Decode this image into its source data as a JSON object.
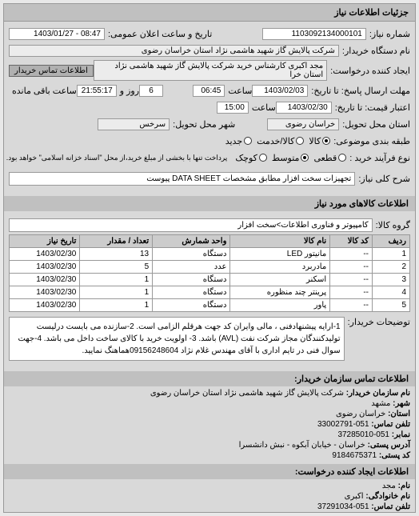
{
  "header": {
    "title": "جزئیات اطلاعات نیاز"
  },
  "fields": {
    "requestNumber": {
      "label": "شماره نیاز:",
      "value": "1103092134000101"
    },
    "announceDateTime": {
      "label": "تاریخ و ساعت اعلان عمومی:",
      "value": "08:47 - 1403/01/27"
    },
    "buyerCompany": {
      "label": "نام دستگاه خریدار:",
      "value": "شرکت پالایش گاز شهید هاشمی نژاد   استان خراسان رضوی"
    },
    "requesterUnit": {
      "label": "ایجاد کننده درخواست:",
      "value": "مجد اکبری کارشناس خرید شرکت پالایش گاز شهید هاشمی نژاد   استان خرا"
    },
    "buyerContactBtn": "اطلاعات تماس خریدار",
    "responseDeadline": {
      "label": "مهلت ارسال پاسخ: تا تاریخ:",
      "date": "1403/02/03",
      "timeLabel": "ساعت",
      "time": "06:45"
    },
    "remaining": {
      "value": "6",
      "label1": "روز و",
      "time": "21:55:17",
      "label2": "ساعت باقی مانده"
    },
    "priceValidity": {
      "label": "اعتبار قیمت: تا تاریخ:",
      "date": "1403/02/30",
      "timeLabel": "ساعت",
      "time": "15:00"
    },
    "deliveryProvince": {
      "label": "استان محل تحویل:",
      "value": "خراسان رضوی"
    },
    "deliveryCity": {
      "label": "شهر محل تحویل:",
      "value": "سرخس"
    },
    "packaging": {
      "label": "طبقه بندی موضوعی:",
      "opt1": "کالا",
      "opt2": "کالا/خدمت",
      "opt3": "جدید"
    },
    "purchaseType": {
      "label": "نوع فرآیند خرید :",
      "opt1": "قطعی",
      "opt2": "متوسط",
      "opt3": "کوچک",
      "note": "پرداخت تنها با بخشی از مبلغ خرید،از محل \"اسناد خزانه اسلامی\" خواهد بود."
    },
    "needDesc": {
      "label": "شرح کلی نیاز:",
      "value": "تجهیزات سخت افزار مطابق مشخصات DATA SHEET پیوست"
    },
    "goodsInfoHeader": "اطلاعات کالاهای مورد نیاز",
    "goodsGroup": {
      "label": "گروه کالا:",
      "value": "کامپیوتر و فناوری اطلاعات>سخت افزار"
    }
  },
  "table": {
    "headers": [
      "ردیف",
      "کد کالا",
      "نام کالا",
      "واحد شمارش",
      "تعداد / مقدار",
      "تاریخ نیاز"
    ],
    "rows": [
      [
        "1",
        "--",
        "مانیتور LED",
        "دستگاه",
        "13",
        "1403/02/30"
      ],
      [
        "2",
        "--",
        "مادربرد",
        "عدد",
        "5",
        "1403/02/30"
      ],
      [
        "3",
        "--",
        "اسکنر",
        "دستگاه",
        "1",
        "1403/02/30"
      ],
      [
        "4",
        "--",
        "پرینتر چند منظوره",
        "دستگاه",
        "1",
        "1403/02/30"
      ],
      [
        "5",
        "--",
        "پاور",
        "دستگاه",
        "1",
        "1403/02/30"
      ]
    ]
  },
  "buyerDesc": {
    "label": "توضیحات خریدار:",
    "text": "1-ارایه پیشنهادفنی ، مالی وایران کد جهت هرقلم الزامی است. 2-سازنده می بایست درلیست تولیدکنندگان مجاز شرکت نفت (AVL) باشد. 3- اولویت خرید با کالای ساخت داخل می باشد. 4-جهت سوال فنی در تایم اداری با آقای مهندس غلام نژاد 09156248604هماهنگ نمایید."
  },
  "buyerOrgHeader": "اطلاعات تماس سازمان خریدار:",
  "orgInfo": {
    "orgName": {
      "label": "نام سازمان خریدار:",
      "value": "شرکت پالایش گاز شهید هاشمی نژاد استان خراسان رضوی"
    },
    "city": {
      "label": "شهر:",
      "value": "مشهد"
    },
    "province": {
      "label": "استان:",
      "value": "خراسان رضوی"
    },
    "phone": {
      "label": "تلفن تماس:",
      "value": "051-33002791"
    },
    "fax": {
      "label": "نمابر:",
      "value": "051-37285010"
    },
    "address": {
      "label": "آدرس پستی:",
      "value": "خراسان - خیابان آبکوه - نبش دانشسرا"
    },
    "postalCode": {
      "label": "کد پستی:",
      "value": "9184675371"
    }
  },
  "requesterHeader": "اطلاعات ایجاد کننده درخواست:",
  "requester": {
    "name": {
      "label": "نام:",
      "value": "مجد"
    },
    "family": {
      "label": "نام خانوادگی:",
      "value": "اکبری"
    },
    "phone": {
      "label": "تلفن تماس:",
      "value": "051-37291034"
    }
  }
}
